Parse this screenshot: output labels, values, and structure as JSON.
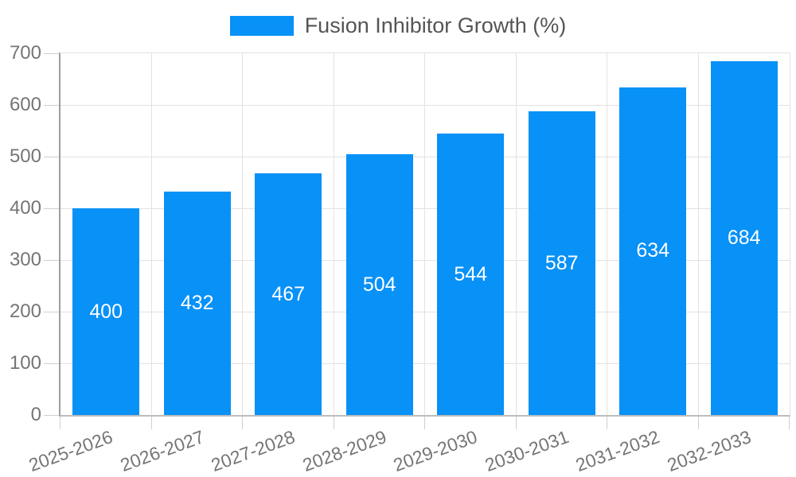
{
  "colors": {
    "bar": "#0891f7",
    "grid": "#e2e2e2",
    "tick": "#cfcfcf",
    "axis_line": "#9e9e9e",
    "bottom_line": "#bdbdbd",
    "axis_text": "#757575",
    "legend_text": "#555555",
    "bar_label": "#ffffff",
    "background": "#ffffff"
  },
  "chart_data": {
    "type": "bar",
    "title": "",
    "legend_entries": [
      "Fusion Inhibitor Growth (%)"
    ],
    "legend_position": "top-center",
    "categories": [
      "2025-2026",
      "2026-2027",
      "2027-2028",
      "2028-2029",
      "2029-2030",
      "2030-2031",
      "2031-2032",
      "2032-2033"
    ],
    "values": [
      400,
      432,
      467,
      504,
      544,
      587,
      634,
      684
    ],
    "xlabel": "",
    "ylabel": "",
    "ylim": [
      0,
      700
    ],
    "yticks": [
      0,
      100,
      200,
      300,
      400,
      500,
      600,
      700
    ],
    "grid": true,
    "bar_value_labels_inside": true,
    "x_tick_rotation_deg": -20
  }
}
